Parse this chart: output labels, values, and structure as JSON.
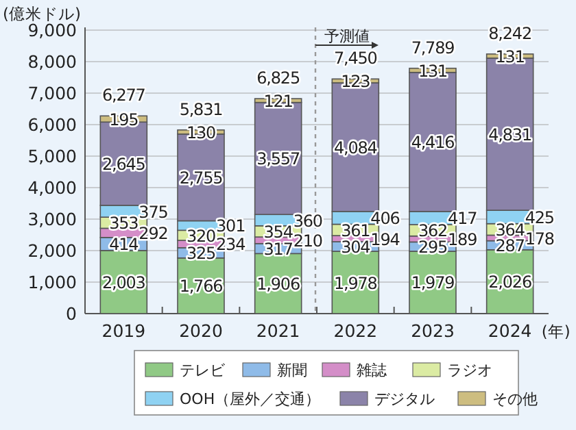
{
  "chart_data": {
    "type": "bar",
    "stacked": true,
    "ylabel": "(億米ドル)",
    "xlabel": "(年)",
    "categories": [
      "2019",
      "2020",
      "2021",
      "2022",
      "2023",
      "2024"
    ],
    "series": [
      {
        "name": "テレビ",
        "color": "#90c985",
        "values": [
          2003,
          1766,
          1906,
          1978,
          1979,
          2026
        ],
        "value_labels": [
          "2,003",
          "1,766",
          "1,906",
          "1,978",
          "1,979",
          "2,026"
        ]
      },
      {
        "name": "新聞",
        "color": "#8fbbe8",
        "values": [
          414,
          325,
          317,
          304,
          295,
          287
        ]
      },
      {
        "name": "雑誌",
        "color": "#d48ec8",
        "values": [
          292,
          234,
          210,
          194,
          189,
          178
        ]
      },
      {
        "name": "ラジオ",
        "color": "#dbeba3",
        "values": [
          353,
          320,
          354,
          361,
          362,
          364
        ]
      },
      {
        "name": "OOH（屋外／交通）",
        "color": "#8fd2f2",
        "values": [
          375,
          301,
          360,
          406,
          417,
          425
        ]
      },
      {
        "name": "デジタル",
        "color": "#8b83a9",
        "values": [
          2645,
          2755,
          3557,
          4084,
          4416,
          4831
        ],
        "value_labels": [
          "2,645",
          "2,755",
          "3,557",
          "4,084",
          "4,416",
          "4,831"
        ]
      },
      {
        "name": "その他",
        "color": "#cdbd80",
        "values": [
          195,
          130,
          121,
          123,
          131,
          131
        ]
      }
    ],
    "totals": [
      "6,277",
      "5,831",
      "6,825",
      "7,450",
      "7,789",
      "8,242"
    ],
    "data_labels": true,
    "ylim": [
      0,
      9000
    ],
    "yticks": [
      {
        "value": 0,
        "label": "0"
      },
      {
        "value": 1000,
        "label": "1,000"
      },
      {
        "value": 2000,
        "label": "2,000"
      },
      {
        "value": 3000,
        "label": "3,000"
      },
      {
        "value": 4000,
        "label": "4,000"
      },
      {
        "value": 5000,
        "label": "5,000"
      },
      {
        "value": 6000,
        "label": "6,000"
      },
      {
        "value": 7000,
        "label": "7,000"
      },
      {
        "value": 8000,
        "label": "8,000"
      },
      {
        "value": 9000,
        "label": "9,000"
      }
    ],
    "grid": "y",
    "legend": "bottom",
    "ref_lines": [
      {
        "axis": "x",
        "value": "2022",
        "label": "予測値",
        "line_style": "dashed",
        "color": "#999999"
      }
    ]
  }
}
